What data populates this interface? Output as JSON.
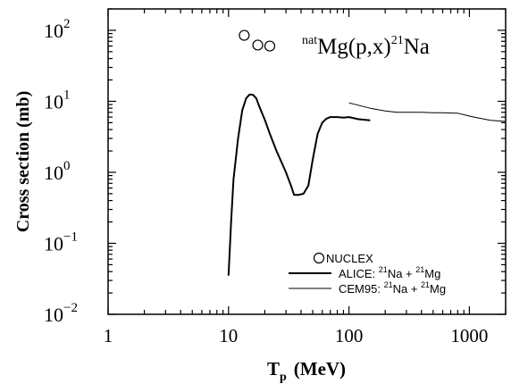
{
  "chart_data": {
    "type": "line",
    "title": "natMg(p,x)21Na",
    "title_parts": {
      "pre_sup": "nat",
      "main": "Mg(p,x)",
      "mid_sup": "21",
      "end": "Na"
    },
    "xlabel": "Tp (MeV)",
    "xlabel_parts": {
      "main": "T",
      "sub": "p",
      "unit": "(MeV)"
    },
    "ylabel": "Cross section (mb)",
    "xscale": "log",
    "yscale": "log",
    "xlim": [
      1,
      2000
    ],
    "ylim": [
      0.01,
      200
    ],
    "x_ticks": [
      {
        "value": 1,
        "label": "1"
      },
      {
        "value": 10,
        "label": "10"
      },
      {
        "value": 100,
        "label": "100"
      },
      {
        "value": 1000,
        "label": "1000"
      }
    ],
    "y_ticks": [
      {
        "value": 0.01,
        "base": "10",
        "exp": "−2"
      },
      {
        "value": 0.1,
        "base": "10",
        "exp": "−1"
      },
      {
        "value": 1,
        "base": "10",
        "exp": "0"
      },
      {
        "value": 10,
        "base": "10",
        "exp": "1"
      },
      {
        "value": 100,
        "base": "10",
        "exp": "2"
      }
    ],
    "grid": false,
    "legend_position": "bottom-right",
    "series": [
      {
        "name": "NUCLEX",
        "legend_parts": [
          "NUCLEX"
        ],
        "style": "markers",
        "marker": "open-circle",
        "color": "#000000",
        "points": [
          [
            13.5,
            85
          ],
          [
            17.5,
            62
          ],
          [
            22,
            60
          ]
        ]
      },
      {
        "name": "ALICE: 21Na + 21Mg",
        "legend_parts": [
          "ALICE: ",
          "21",
          "Na + ",
          "21",
          "Mg"
        ],
        "style": "line",
        "line_width": 2,
        "color": "#000000",
        "points": [
          [
            10,
            0.035
          ],
          [
            10.5,
            0.2
          ],
          [
            11,
            0.8
          ],
          [
            12,
            3
          ],
          [
            13,
            7.5
          ],
          [
            14,
            11
          ],
          [
            15,
            12.5
          ],
          [
            16,
            12.3
          ],
          [
            17,
            11
          ],
          [
            18,
            8.5
          ],
          [
            20,
            5.5
          ],
          [
            22,
            3.5
          ],
          [
            25,
            2
          ],
          [
            28,
            1.3
          ],
          [
            30,
            1
          ],
          [
            33,
            0.65
          ],
          [
            35,
            0.48
          ],
          [
            38,
            0.48
          ],
          [
            42,
            0.5
          ],
          [
            46,
            0.65
          ],
          [
            50,
            1.5
          ],
          [
            55,
            3.5
          ],
          [
            60,
            5
          ],
          [
            65,
            5.7
          ],
          [
            70,
            6
          ],
          [
            80,
            6
          ],
          [
            90,
            5.9
          ],
          [
            100,
            6
          ],
          [
            120,
            5.6
          ],
          [
            150,
            5.4
          ]
        ]
      },
      {
        "name": "CEM95: 21Na + 21Mg",
        "legend_parts": [
          "CEM95: ",
          "21",
          "Na + ",
          "21",
          "Mg"
        ],
        "style": "line",
        "line_width": 1,
        "color": "#000000",
        "points": [
          [
            100,
            9.5
          ],
          [
            150,
            8
          ],
          [
            200,
            7.3
          ],
          [
            250,
            7
          ],
          [
            300,
            7
          ],
          [
            400,
            7
          ],
          [
            500,
            6.9
          ],
          [
            600,
            6.9
          ],
          [
            800,
            6.8
          ],
          [
            1000,
            6.2
          ],
          [
            1200,
            5.8
          ],
          [
            1500,
            5.4
          ],
          [
            2000,
            5.2
          ]
        ]
      }
    ]
  }
}
